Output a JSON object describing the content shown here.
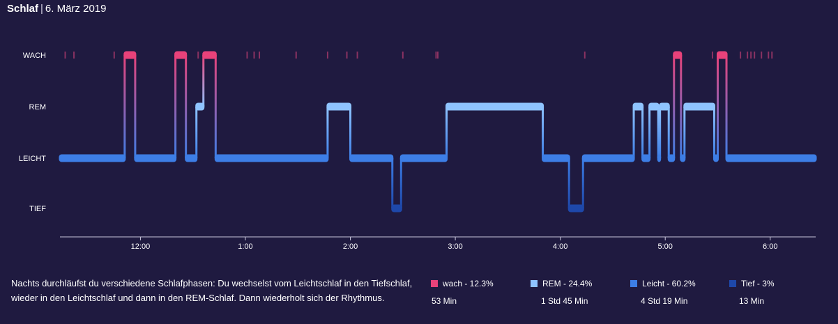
{
  "title": {
    "main": "Schlaf",
    "separator": "|",
    "date": "6. März 2019"
  },
  "chart_data": {
    "type": "sleep-stages",
    "stages": [
      "WACH",
      "REM",
      "LEICHT",
      "TIEF"
    ],
    "x_ticks": [
      "12:00",
      "1:00",
      "2:00",
      "3:00",
      "4:00",
      "5:00",
      "6:00"
    ],
    "x_range": [
      "11:14",
      "6:26"
    ],
    "colors": {
      "WACH": "#e8427a",
      "REM": "#8fc4ff",
      "LEICHT": "#3d7ee6",
      "TIEF": "#1e48aa"
    },
    "segments": [
      {
        "stage": "LEICHT",
        "start": "11:14",
        "end": "11:51"
      },
      {
        "stage": "WACH",
        "start": "11:51",
        "end": "11:57"
      },
      {
        "stage": "LEICHT",
        "start": "11:57",
        "end": "12:20"
      },
      {
        "stage": "WACH",
        "start": "12:20",
        "end": "12:26"
      },
      {
        "stage": "LEICHT",
        "start": "12:26",
        "end": "12:32"
      },
      {
        "stage": "REM",
        "start": "12:32",
        "end": "12:36"
      },
      {
        "stage": "WACH",
        "start": "12:36",
        "end": "12:43"
      },
      {
        "stage": "LEICHT",
        "start": "12:43",
        "end": "1:47"
      },
      {
        "stage": "REM",
        "start": "1:47",
        "end": "2:00"
      },
      {
        "stage": "LEICHT",
        "start": "2:00",
        "end": "2:24"
      },
      {
        "stage": "TIEF",
        "start": "2:24",
        "end": "2:29"
      },
      {
        "stage": "LEICHT",
        "start": "2:29",
        "end": "2:55"
      },
      {
        "stage": "REM",
        "start": "2:55",
        "end": "3:50"
      },
      {
        "stage": "LEICHT",
        "start": "3:50",
        "end": "4:05"
      },
      {
        "stage": "TIEF",
        "start": "4:05",
        "end": "4:13"
      },
      {
        "stage": "LEICHT",
        "start": "4:13",
        "end": "4:42"
      },
      {
        "stage": "REM",
        "start": "4:42",
        "end": "4:47"
      },
      {
        "stage": "LEICHT",
        "start": "4:47",
        "end": "4:51"
      },
      {
        "stage": "REM",
        "start": "4:51",
        "end": "4:56"
      },
      {
        "stage": "LEICHT",
        "start": "4:56",
        "end": "4:57"
      },
      {
        "stage": "REM",
        "start": "4:57",
        "end": "5:02"
      },
      {
        "stage": "LEICHT",
        "start": "5:02",
        "end": "5:05"
      },
      {
        "stage": "WACH",
        "start": "5:05",
        "end": "5:09"
      },
      {
        "stage": "LEICHT",
        "start": "5:09",
        "end": "5:11"
      },
      {
        "stage": "REM",
        "start": "5:11",
        "end": "5:28"
      },
      {
        "stage": "LEICHT",
        "start": "5:28",
        "end": "5:30"
      },
      {
        "stage": "WACH",
        "start": "5:30",
        "end": "5:35"
      },
      {
        "stage": "LEICHT",
        "start": "5:35",
        "end": "6:26"
      }
    ],
    "brief_wakes": [
      "11:17",
      "11:22",
      "11:45",
      "12:33",
      "1:01",
      "1:05",
      "1:08",
      "1:29",
      "1:47",
      "1:58",
      "2:04",
      "2:30",
      "2:49",
      "2:50",
      "4:14",
      "5:27",
      "5:43",
      "5:47",
      "5:49",
      "5:51",
      "5:55",
      "5:59",
      "6:01"
    ]
  },
  "description": "Nachts durchläufst du verschiedene Schlafphasen: Du wechselst vom Leichtschlaf in den Tiefschlaf, wieder in den Leichtschlaf und dann in den REM-Schlaf. Dann wiederholt sich der Rhythmus.",
  "legend": [
    {
      "label": "wach - 12.3%",
      "duration": "53 Min",
      "color": "#e8427a"
    },
    {
      "label": "REM - 24.4%",
      "duration": "1 Std 45 Min",
      "color": "#8fc4ff"
    },
    {
      "label": "Leicht - 60.2%",
      "duration": "4 Std 19 Min",
      "color": "#3d7ee6"
    },
    {
      "label": "Tief - 3%",
      "duration": "13 Min",
      "color": "#1e48aa"
    }
  ]
}
